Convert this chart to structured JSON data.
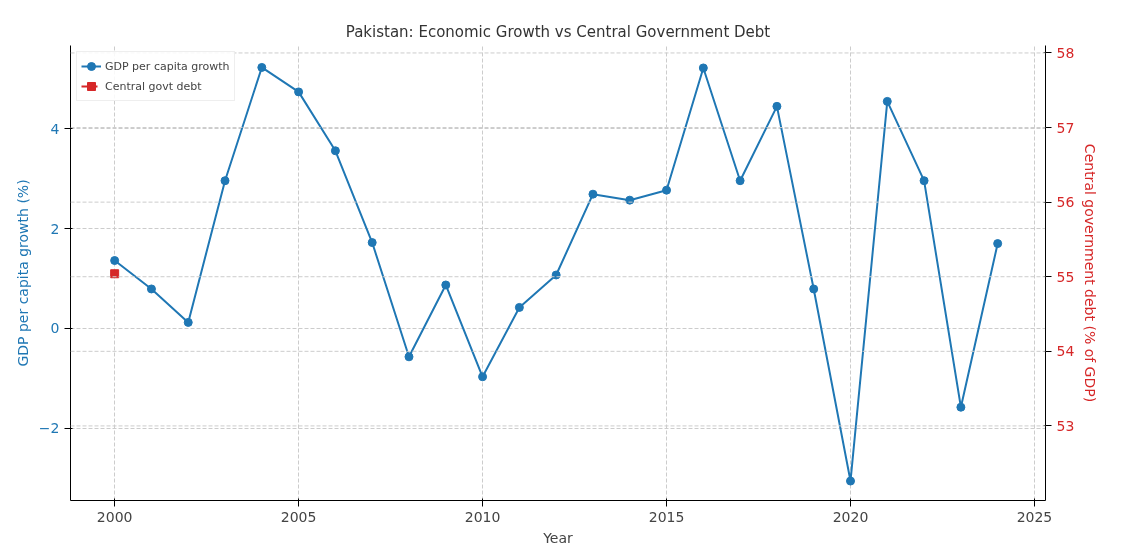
{
  "chart_data": {
    "type": "line",
    "title": "Pakistan: Economic Growth vs Central Government Debt",
    "xlabel": "Year",
    "ylabel": "GDP per capita growth (%)",
    "y2label": "Central government debt (% of GDP)",
    "x": [
      2000,
      2001,
      2002,
      2003,
      2004,
      2005,
      2006,
      2007,
      2008,
      2009,
      2010,
      2011,
      2012,
      2013,
      2014,
      2015,
      2016,
      2017,
      2018,
      2019,
      2020,
      2021,
      2022,
      2023,
      2024
    ],
    "series": [
      {
        "name": "GDP per capita growth",
        "color": "#1f77b4",
        "marker": "circle",
        "line_style": "solid",
        "values": [
          1.36,
          0.79,
          0.12,
          2.96,
          5.23,
          4.74,
          3.56,
          1.72,
          -0.57,
          0.87,
          -0.97,
          0.42,
          1.07,
          2.69,
          2.57,
          2.77,
          5.22,
          2.96,
          4.45,
          0.79,
          -3.06,
          4.55,
          2.96,
          -1.58,
          1.7
        ]
      },
      {
        "name": "Central govt debt",
        "color": "#d62728",
        "marker": "square",
        "line_style": "dashed",
        "axis": "y2",
        "x": [
          2000
        ],
        "values": [
          55.04
        ]
      }
    ],
    "xlim": [
      1998.8,
      2025.3
    ],
    "xticks": [
      2000,
      2005,
      2010,
      2015,
      2020,
      2025
    ],
    "ylim": [
      -3.45,
      5.67
    ],
    "yticks": [
      {
        "value": -2,
        "label": "−2"
      },
      0,
      2,
      4
    ],
    "y2lim": [
      52.0,
      58.1
    ],
    "y2ticks": [
      53,
      54,
      55,
      56,
      57,
      58
    ],
    "grid": true,
    "legend": "top left"
  }
}
